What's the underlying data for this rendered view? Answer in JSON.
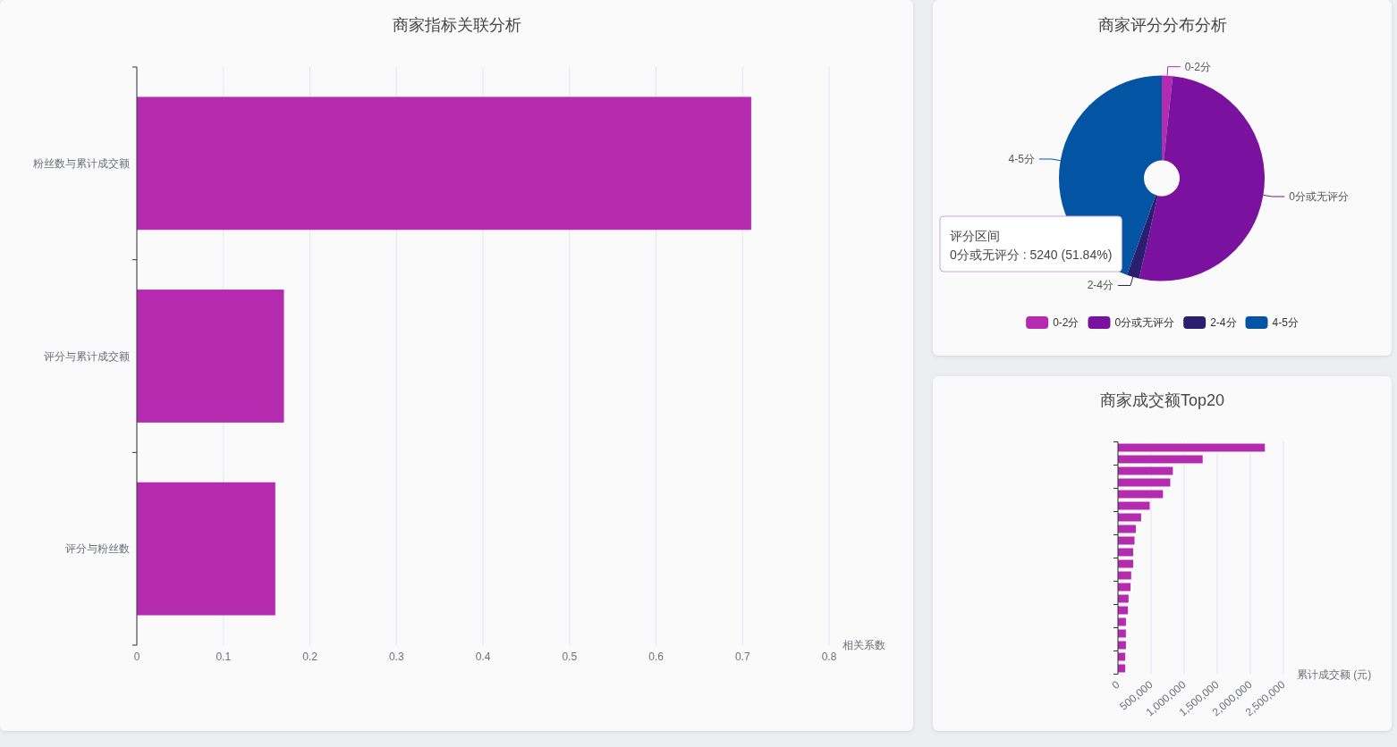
{
  "chart_data": [
    {
      "type": "bar",
      "title": "商家指标关联分析",
      "orientation": "horizontal",
      "categories": [
        "粉丝数与累计成交额",
        "评分与累计成交额",
        "评分与粉丝数"
      ],
      "values": [
        0.71,
        0.17,
        0.16
      ],
      "color": "#b52bb0",
      "xlabel": "相关系数",
      "xlim": [
        0,
        0.8
      ],
      "xticks": [
        0,
        0.1,
        0.2,
        0.3,
        0.4,
        0.5,
        0.6,
        0.7,
        0.8
      ],
      "grid": "x"
    },
    {
      "type": "donut",
      "title": "商家评分分布分析",
      "categories": [
        "0-2分",
        "0分或无评分",
        "2-4分",
        "4-5分"
      ],
      "values": [
        1.7,
        51.84,
        1.96,
        44.5
      ],
      "colors": [
        "#b52bb0",
        "#7b129f",
        "#2b1e6e",
        "#0454a4"
      ],
      "legend": "bottom",
      "annotations": [
        "评分区间",
        "0分或无评分 : 5240 (51.84%)"
      ]
    },
    {
      "type": "bar",
      "title": "商家成交额Top20",
      "orientation": "horizontal",
      "categories": [
        null,
        null,
        null,
        null,
        null,
        null,
        null,
        null,
        null,
        null,
        null,
        null,
        null,
        null,
        null,
        null,
        null,
        null,
        null,
        null
      ],
      "values": [
        2220000,
        1280000,
        830000,
        790000,
        680000,
        480000,
        350000,
        270000,
        250000,
        230000,
        230000,
        200000,
        190000,
        160000,
        150000,
        120000,
        120000,
        120000,
        110000,
        110000
      ],
      "color": "#b52bb0",
      "xlabel": "累计成交额 (元)",
      "xlim": [
        0,
        2500000
      ],
      "xticks": [
        0,
        {
          "value": 500000,
          "label": "500,000"
        },
        {
          "value": 1000000,
          "label": "1,000,000"
        },
        {
          "value": 1500000,
          "label": "1,500,000"
        },
        {
          "value": 2000000,
          "label": "2,000,000"
        },
        {
          "value": 2500000,
          "label": "2,500,000"
        }
      ],
      "grid": "x"
    }
  ]
}
